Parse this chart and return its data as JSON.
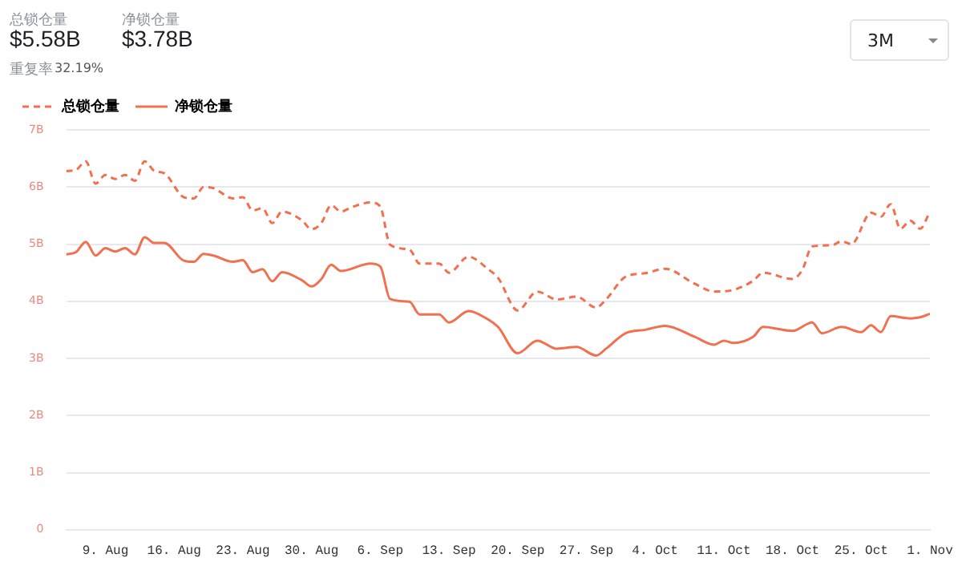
{
  "chart_data": {
    "type": "line",
    "annotations": [
      "总锁仓量",
      "$5.58B",
      "净锁仓量",
      "$3.78B",
      "重复率",
      "32.19%",
      "3M"
    ],
    "xlim": [
      "--08-05",
      "--11-01"
    ],
    "xticks": [
      {
        "value": "--08-09",
        "label": "9. Aug"
      },
      {
        "value": "--08-16",
        "label": "16. Aug"
      },
      {
        "value": "--08-23",
        "label": "23. Aug"
      },
      {
        "value": "--08-30",
        "label": "30. Aug"
      },
      {
        "value": "--09-06",
        "label": "6. Sep"
      },
      {
        "value": "--09-13",
        "label": "13. Sep"
      },
      {
        "value": "--09-20",
        "label": "20. Sep"
      },
      {
        "value": "--09-27",
        "label": "27. Sep"
      },
      {
        "value": "--10-04",
        "label": "4. Oct"
      },
      {
        "value": "--10-11",
        "label": "11. Oct"
      },
      {
        "value": "--10-18",
        "label": "18. Oct"
      },
      {
        "value": "--10-25",
        "label": "25. Oct"
      },
      {
        "value": "--11-01",
        "label": "1. Nov"
      }
    ],
    "ylim": [
      0,
      7
    ],
    "yticks": [
      0,
      {
        "value": 1,
        "label": "1B"
      },
      {
        "value": 2,
        "label": "2B"
      },
      {
        "value": 3,
        "label": "3B"
      },
      {
        "value": 4,
        "label": "4B"
      },
      {
        "value": 5,
        "label": "5B"
      },
      {
        "value": 6,
        "label": "6B"
      },
      {
        "value": 7,
        "label": "7B"
      }
    ],
    "grid": "y",
    "legend": "top left",
    "marker": "none",
    "series": [
      {
        "name": "总锁仓量",
        "color": "#f07050",
        "line_style": "dashed",
        "x": [
          "--08-05",
          "--08-06",
          "--08-07",
          "--08-08",
          "--08-09",
          "--08-10",
          "--08-11",
          "--08-12",
          "--08-13",
          "--08-14",
          "--08-15",
          "--08-17",
          "--08-18",
          "--08-19",
          "--08-20",
          "--08-22",
          "--08-23",
          "--08-24",
          "--08-25",
          "--08-26",
          "--08-27",
          "--08-29",
          "--08-30",
          "--08-31",
          "--09-01",
          "--09-02",
          "--09-03",
          "--09-05",
          "--09-06",
          "--09-07",
          "--09-09",
          "--09-10",
          "--09-12",
          "--09-13",
          "--09-15",
          "--09-17",
          "--09-18",
          "--09-20",
          "--09-22",
          "--09-24",
          "--09-26",
          "--09-28",
          "--09-29",
          "--10-01",
          "--10-03",
          "--10-05",
          "--10-08",
          "--10-10",
          "--10-12",
          "--10-14",
          "--10-15",
          "--10-18",
          "--10-19",
          "--10-20",
          "--10-22",
          "--10-23",
          "--10-24",
          "--10-26",
          "--10-27",
          "--10-28",
          "--10-29",
          "--10-30",
          "--10-31",
          "--11-01"
        ],
        "values": [
          6.28,
          6.3,
          6.45,
          6.06,
          6.21,
          6.14,
          6.21,
          6.11,
          6.45,
          6.28,
          6.24,
          5.82,
          5.8,
          6.0,
          5.98,
          5.8,
          5.82,
          5.59,
          5.63,
          5.37,
          5.57,
          5.42,
          5.26,
          5.37,
          5.68,
          5.57,
          5.64,
          5.73,
          5.66,
          4.99,
          4.9,
          4.66,
          4.66,
          4.5,
          4.78,
          4.56,
          4.41,
          3.84,
          4.17,
          4.03,
          4.08,
          3.89,
          4.03,
          4.43,
          4.49,
          4.57,
          4.31,
          4.17,
          4.2,
          4.36,
          4.5,
          4.39,
          4.55,
          4.96,
          4.98,
          5.05,
          5.0,
          5.55,
          5.48,
          5.7,
          5.27,
          5.41,
          5.27,
          5.57
        ]
      },
      {
        "name": "净锁仓量",
        "color": "#f07050",
        "line_style": "solid",
        "x": [
          "--08-05",
          "--08-06",
          "--08-07",
          "--08-08",
          "--08-09",
          "--08-10",
          "--08-11",
          "--08-12",
          "--08-13",
          "--08-14",
          "--08-15",
          "--08-17",
          "--08-18",
          "--08-19",
          "--08-20",
          "--08-22",
          "--08-23",
          "--08-24",
          "--08-25",
          "--08-26",
          "--08-27",
          "--08-29",
          "--08-30",
          "--08-31",
          "--09-01",
          "--09-02",
          "--09-05",
          "--09-06",
          "--09-07",
          "--09-09",
          "--09-10",
          "--09-12",
          "--09-13",
          "--09-15",
          "--09-17",
          "--09-18",
          "--09-20",
          "--09-22",
          "--09-24",
          "--09-26",
          "--09-28",
          "--09-29",
          "--10-01",
          "--10-03",
          "--10-05",
          "--10-08",
          "--10-10",
          "--10-11",
          "--10-12",
          "--10-14",
          "--10-15",
          "--10-18",
          "--10-20",
          "--10-21",
          "--10-23",
          "--10-25",
          "--10-26",
          "--10-27",
          "--10-28",
          "--10-30",
          "--10-31",
          "--11-01"
        ],
        "values": [
          4.82,
          4.86,
          5.04,
          4.8,
          4.93,
          4.87,
          4.93,
          4.82,
          5.12,
          5.02,
          5.02,
          4.71,
          4.69,
          4.83,
          4.8,
          4.69,
          4.72,
          4.51,
          4.56,
          4.35,
          4.51,
          4.37,
          4.26,
          4.39,
          4.64,
          4.53,
          4.66,
          4.61,
          4.04,
          3.99,
          3.77,
          3.77,
          3.63,
          3.83,
          3.68,
          3.55,
          3.09,
          3.31,
          3.17,
          3.2,
          3.05,
          3.17,
          3.44,
          3.5,
          3.57,
          3.38,
          3.24,
          3.31,
          3.27,
          3.38,
          3.55,
          3.48,
          3.63,
          3.44,
          3.55,
          3.46,
          3.58,
          3.46,
          3.74,
          3.7,
          3.72,
          3.78
        ]
      }
    ]
  }
}
